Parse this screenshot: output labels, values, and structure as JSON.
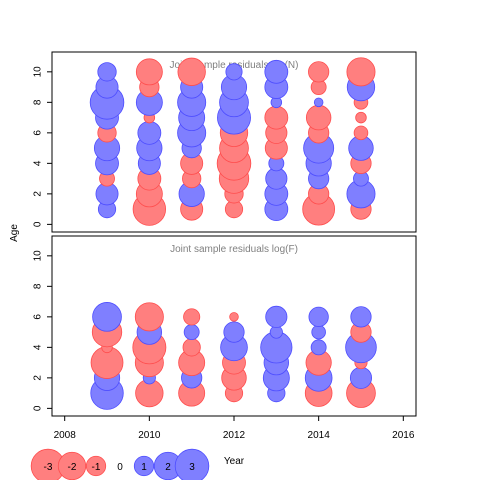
{
  "chart_data": [
    {
      "type": "scatter",
      "subtype": "bubble",
      "title": "Joint sample residuals log(N)",
      "xlabel": "",
      "ylabel": "Age",
      "xlim": [
        2007.7,
        2016.3
      ],
      "ylim": [
        -0.5,
        11.3
      ],
      "xticks": [
        "2008",
        "2010",
        "2012",
        "2014",
        "2016"
      ],
      "yticks": [
        "0",
        "2",
        "4",
        "6",
        "8",
        "10"
      ],
      "grid": false,
      "points": [
        {
          "x": 2009,
          "y": 1,
          "r": 0.8
        },
        {
          "x": 2009,
          "y": 2,
          "r": 1.3
        },
        {
          "x": 2009,
          "y": 3,
          "r": -0.6
        },
        {
          "x": 2009,
          "y": 4,
          "r": 1.4
        },
        {
          "x": 2009,
          "y": 5,
          "r": 1.7
        },
        {
          "x": 2009,
          "y": 6,
          "r": -0.9
        },
        {
          "x": 2009,
          "y": 7,
          "r": 1.4
        },
        {
          "x": 2009,
          "y": 8,
          "r": 3.0
        },
        {
          "x": 2009,
          "y": 9,
          "r": 1.3
        },
        {
          "x": 2009,
          "y": 10,
          "r": 0.9
        },
        {
          "x": 2010,
          "y": 1,
          "r": -2.8
        },
        {
          "x": 2010,
          "y": 2,
          "r": -1.8
        },
        {
          "x": 2010,
          "y": 3,
          "r": -1.4
        },
        {
          "x": 2010,
          "y": 4,
          "r": 1.3
        },
        {
          "x": 2010,
          "y": 5,
          "r": 1.7
        },
        {
          "x": 2010,
          "y": 6,
          "r": 1.4
        },
        {
          "x": 2010,
          "y": 7,
          "r": -0.3
        },
        {
          "x": 2010,
          "y": 8,
          "r": 1.8
        },
        {
          "x": 2010,
          "y": 9,
          "r": -1.0
        },
        {
          "x": 2010,
          "y": 10,
          "r": -1.8
        },
        {
          "x": 2011,
          "y": 1,
          "r": -1.3
        },
        {
          "x": 2011,
          "y": 2,
          "r": 1.7
        },
        {
          "x": 2011,
          "y": 3,
          "r": -0.9
        },
        {
          "x": 2011,
          "y": 4,
          "r": -1.3
        },
        {
          "x": 2011,
          "y": 5,
          "r": 1.0
        },
        {
          "x": 2011,
          "y": 6,
          "r": 2.1
        },
        {
          "x": 2011,
          "y": 7,
          "r": 1.8
        },
        {
          "x": 2011,
          "y": 8,
          "r": 2.1
        },
        {
          "x": 2011,
          "y": 9,
          "r": 1.3
        },
        {
          "x": 2011,
          "y": 10,
          "r": -2.0
        },
        {
          "x": 2012,
          "y": 1,
          "r": -0.8
        },
        {
          "x": 2012,
          "y": 2,
          "r": -0.9
        },
        {
          "x": 2012,
          "y": 3,
          "r": -2.3
        },
        {
          "x": 2012,
          "y": 4,
          "r": -3.0
        },
        {
          "x": 2012,
          "y": 5,
          "r": -2.2
        },
        {
          "x": 2012,
          "y": 6,
          "r": -2.0
        },
        {
          "x": 2012,
          "y": 7,
          "r": 2.9
        },
        {
          "x": 2012,
          "y": 8,
          "r": 2.2
        },
        {
          "x": 2012,
          "y": 9,
          "r": 1.7
        },
        {
          "x": 2012,
          "y": 10,
          "r": 0.7
        },
        {
          "x": 2013,
          "y": 1,
          "r": 1.4
        },
        {
          "x": 2013,
          "y": 2,
          "r": 1.4
        },
        {
          "x": 2013,
          "y": 3,
          "r": 1.2
        },
        {
          "x": 2013,
          "y": 4,
          "r": 0.6
        },
        {
          "x": 2013,
          "y": 5,
          "r": -1.3
        },
        {
          "x": 2013,
          "y": 6,
          "r": -1.2
        },
        {
          "x": 2013,
          "y": 7,
          "r": -1.4
        },
        {
          "x": 2013,
          "y": 8,
          "r": 0.3
        },
        {
          "x": 2013,
          "y": 9,
          "r": 1.4
        },
        {
          "x": 2013,
          "y": 10,
          "r": 1.4
        },
        {
          "x": 2014,
          "y": 1,
          "r": -2.7
        },
        {
          "x": 2014,
          "y": 2,
          "r": -1.1
        },
        {
          "x": 2014,
          "y": 3,
          "r": 1.1
        },
        {
          "x": 2014,
          "y": 4,
          "r": 1.7
        },
        {
          "x": 2014,
          "y": 5,
          "r": 2.4
        },
        {
          "x": 2014,
          "y": 6,
          "r": -1.1
        },
        {
          "x": 2014,
          "y": 7,
          "r": -1.6
        },
        {
          "x": 2014,
          "y": 8,
          "r": 0.2
        },
        {
          "x": 2014,
          "y": 9,
          "r": -0.6
        },
        {
          "x": 2014,
          "y": 10,
          "r": -1.1
        },
        {
          "x": 2015,
          "y": 1,
          "r": -1.1
        },
        {
          "x": 2015,
          "y": 2,
          "r": 2.1
        },
        {
          "x": 2015,
          "y": 3,
          "r": 0.6
        },
        {
          "x": 2015,
          "y": 4,
          "r": -1.1
        },
        {
          "x": 2015,
          "y": 5,
          "r": 1.6
        },
        {
          "x": 2015,
          "y": 6,
          "r": -0.5
        },
        {
          "x": 2015,
          "y": 7,
          "r": -0.3
        },
        {
          "x": 2015,
          "y": 8,
          "r": -0.5
        },
        {
          "x": 2015,
          "y": 9,
          "r": 2.0
        },
        {
          "x": 2015,
          "y": 10,
          "r": -2.1
        }
      ]
    },
    {
      "type": "scatter",
      "subtype": "bubble",
      "title": "Joint sample residuals log(F)",
      "xlabel": "Year",
      "ylabel": "",
      "xlim": [
        2007.7,
        2016.3
      ],
      "ylim": [
        -0.5,
        11.3
      ],
      "xticks": [
        "2008",
        "2010",
        "2012",
        "2014",
        "2016"
      ],
      "yticks": [
        "0",
        "2",
        "4",
        "6",
        "8",
        "10"
      ],
      "grid": false,
      "points": [
        {
          "x": 2009,
          "y": 1,
          "r": 2.8
        },
        {
          "x": 2009,
          "y": 2,
          "r": 1.7
        },
        {
          "x": 2009,
          "y": 3,
          "r": -2.7
        },
        {
          "x": 2009,
          "y": 4,
          "r": -0.3
        },
        {
          "x": 2009,
          "y": 5,
          "r": -2.3
        },
        {
          "x": 2009,
          "y": 6,
          "r": 2.2
        },
        {
          "x": 2010,
          "y": 1,
          "r": -2.0
        },
        {
          "x": 2010,
          "y": 2,
          "r": 0.4
        },
        {
          "x": 2010,
          "y": 3,
          "r": -2.1
        },
        {
          "x": 2010,
          "y": 4,
          "r": -2.9
        },
        {
          "x": 2010,
          "y": 5,
          "r": 1.6
        },
        {
          "x": 2010,
          "y": 6,
          "r": -2.1
        },
        {
          "x": 2011,
          "y": 1,
          "r": -1.8
        },
        {
          "x": 2011,
          "y": 2,
          "r": 1.1
        },
        {
          "x": 2011,
          "y": 3,
          "r": -1.8
        },
        {
          "x": 2011,
          "y": 4,
          "r": -0.8
        },
        {
          "x": 2011,
          "y": 5,
          "r": 0.6
        },
        {
          "x": 2011,
          "y": 6,
          "r": -0.7
        },
        {
          "x": 2012,
          "y": 1,
          "r": -0.8
        },
        {
          "x": 2012,
          "y": 2,
          "r": -1.6
        },
        {
          "x": 2012,
          "y": 3,
          "r": -1.4
        },
        {
          "x": 2012,
          "y": 4,
          "r": 1.9
        },
        {
          "x": 2012,
          "y": 5,
          "r": 1.1
        },
        {
          "x": 2012,
          "y": 6,
          "r": -0.2
        },
        {
          "x": 2013,
          "y": 1,
          "r": 0.8
        },
        {
          "x": 2013,
          "y": 2,
          "r": 1.8
        },
        {
          "x": 2013,
          "y": 3,
          "r": 1.6
        },
        {
          "x": 2013,
          "y": 4,
          "r": 2.6
        },
        {
          "x": 2013,
          "y": 5,
          "r": 0.4
        },
        {
          "x": 2013,
          "y": 6,
          "r": 1.2
        },
        {
          "x": 2014,
          "y": 1,
          "r": -1.9
        },
        {
          "x": 2014,
          "y": 2,
          "r": 1.9
        },
        {
          "x": 2014,
          "y": 3,
          "r": -1.7
        },
        {
          "x": 2014,
          "y": 4,
          "r": 0.6
        },
        {
          "x": 2014,
          "y": 5,
          "r": 0.5
        },
        {
          "x": 2014,
          "y": 6,
          "r": 1.0
        },
        {
          "x": 2015,
          "y": 1,
          "r": -2.2
        },
        {
          "x": 2015,
          "y": 2,
          "r": 1.2
        },
        {
          "x": 2015,
          "y": 3,
          "r": -0.4
        },
        {
          "x": 2015,
          "y": 4,
          "r": 2.5
        },
        {
          "x": 2015,
          "y": 5,
          "r": -1.1
        },
        {
          "x": 2015,
          "y": 6,
          "r": 1.1
        }
      ]
    }
  ],
  "legend": {
    "placement": "bottom-left",
    "items": [
      {
        "value": -3,
        "label": "-3"
      },
      {
        "value": -2,
        "label": "-2"
      },
      {
        "value": -1,
        "label": "-1"
      },
      {
        "value": 0,
        "label": "0"
      },
      {
        "value": 1,
        "label": "1"
      },
      {
        "value": 2,
        "label": "2"
      },
      {
        "value": 3,
        "label": "3"
      }
    ]
  },
  "colors": {
    "negative": "#ff7f7f",
    "negative_stroke": "#ff4d4d",
    "positive": "#7f7fff",
    "positive_stroke": "#4d4dff",
    "axis": "#000000",
    "title": "#808080"
  }
}
